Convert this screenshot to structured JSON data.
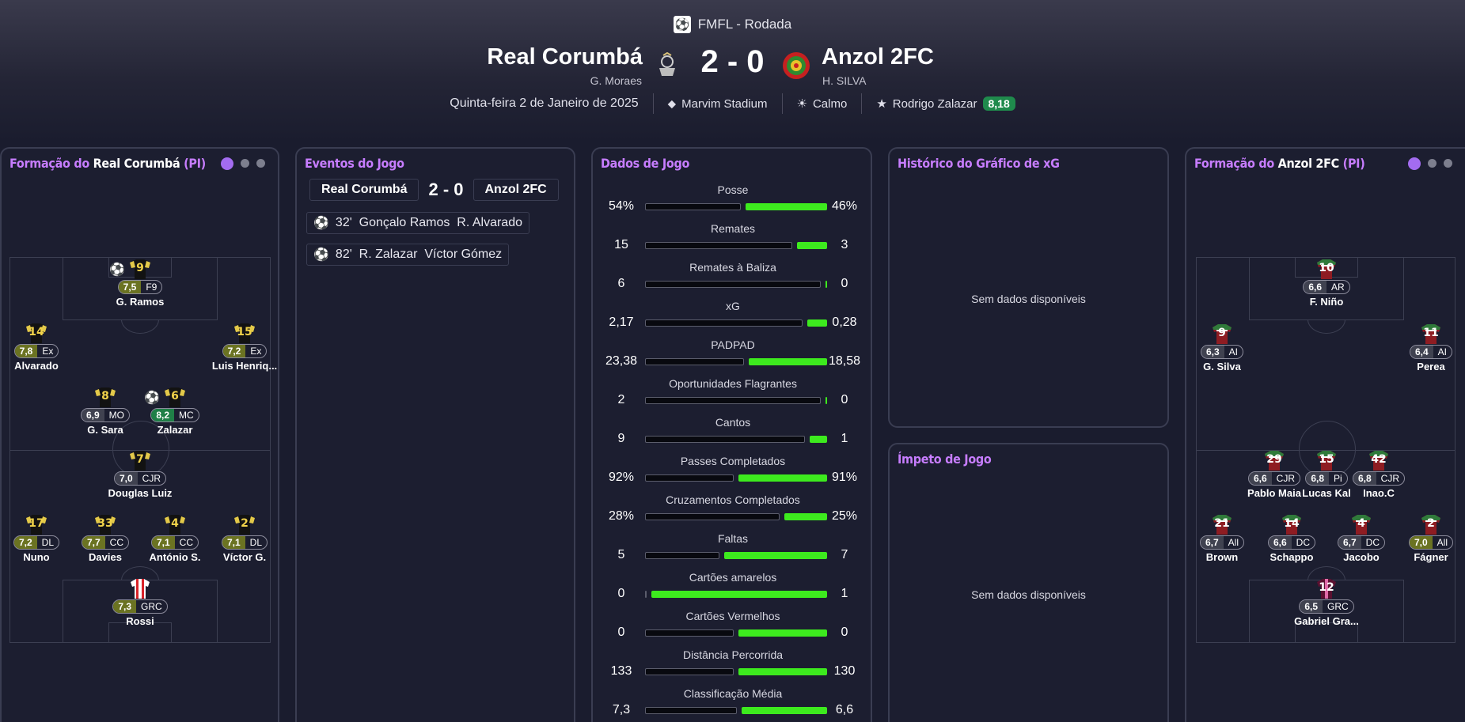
{
  "competition": {
    "icon": "competition-logo",
    "name": "FMFL - Rodada"
  },
  "match": {
    "home": {
      "name": "Real Corumbá",
      "coach": "G. Moraes"
    },
    "away": {
      "name": "Anzol 2FC",
      "coach": "H. SILVA"
    },
    "score": "2 - 0",
    "date": "Quinta-feira 2 de Janeiro de 2025",
    "stadium": "Marvim Stadium",
    "weather": "Calmo",
    "potm": {
      "name": "Rodrigo Zalazar",
      "rating": "8,18"
    }
  },
  "home_lineup": {
    "title_prefix": "Formação do ",
    "team": "Real Corumbá",
    "suffix": " (PI)",
    "players": [
      {
        "num": "9",
        "rating": "7,5",
        "tone": "olive",
        "pos": "F9",
        "name": "G. Ramos",
        "goal": true
      },
      {
        "num": "14",
        "rating": "7,8",
        "tone": "olive",
        "pos": "Ex",
        "name": "Alvarado"
      },
      {
        "num": "15",
        "rating": "7,2",
        "tone": "olive",
        "pos": "Ex",
        "name": "Luis Henriq..."
      },
      {
        "num": "8",
        "rating": "6,9",
        "tone": "gray",
        "pos": "MO",
        "name": "G. Sara"
      },
      {
        "num": "6",
        "rating": "8,2",
        "tone": "green",
        "pos": "MC",
        "name": "Zalazar",
        "goal": true
      },
      {
        "num": "7",
        "rating": "7,0",
        "tone": "gray",
        "pos": "CJR",
        "name": "Douglas Luiz"
      },
      {
        "num": "17",
        "rating": "7,2",
        "tone": "olive",
        "pos": "DL",
        "name": "Nuno"
      },
      {
        "num": "33",
        "rating": "7,7",
        "tone": "olive",
        "pos": "CC",
        "name": "Davies"
      },
      {
        "num": "4",
        "rating": "7,1",
        "tone": "olive",
        "pos": "CC",
        "name": "António S."
      },
      {
        "num": "2",
        "rating": "7,1",
        "tone": "olive",
        "pos": "DL",
        "name": "Víctor G."
      },
      {
        "num": "",
        "rating": "7,3",
        "tone": "olive",
        "pos": "GRC",
        "name": "Rossi",
        "gk": true
      }
    ]
  },
  "away_lineup": {
    "title_prefix": "Formação do ",
    "team": "Anzol 2FC",
    "suffix": " (PI)",
    "players": [
      {
        "num": "10",
        "rating": "6,6",
        "tone": "gray",
        "pos": "AR",
        "name": "F. Niño"
      },
      {
        "num": "9",
        "rating": "6,3",
        "tone": "gray",
        "pos": "AI",
        "name": "G. Silva"
      },
      {
        "num": "11",
        "rating": "6,4",
        "tone": "gray",
        "pos": "AI",
        "name": "Perea"
      },
      {
        "num": "29",
        "rating": "6,6",
        "tone": "gray",
        "pos": "CJR",
        "name": "Pablo Maia"
      },
      {
        "num": "15",
        "rating": "6,8",
        "tone": "gray",
        "pos": "Pi",
        "name": "Lucas Kal"
      },
      {
        "num": "42",
        "rating": "6,8",
        "tone": "gray",
        "pos": "CJR",
        "name": "Inao.C"
      },
      {
        "num": "21",
        "rating": "6,7",
        "tone": "gray",
        "pos": "All",
        "name": "Brown"
      },
      {
        "num": "14",
        "rating": "6,6",
        "tone": "gray",
        "pos": "DC",
        "name": "Schappo"
      },
      {
        "num": "4",
        "rating": "6,7",
        "tone": "gray",
        "pos": "DC",
        "name": "Jacobo"
      },
      {
        "num": "2",
        "rating": "7,0",
        "tone": "olive",
        "pos": "All",
        "name": "Fágner"
      },
      {
        "num": "12",
        "rating": "6,5",
        "tone": "gray",
        "pos": "GRC",
        "name": "Gabriel Gra...",
        "gk": true
      }
    ]
  },
  "events": {
    "title": "Eventos do Jogo",
    "home": "Real Corumbá",
    "score": "2 - 0",
    "away": "Anzol 2FC",
    "items": [
      {
        "icon": "ball-icon",
        "text": "32'  Gonçalo Ramos  R. Alvarado"
      },
      {
        "icon": "ball-icon",
        "text": "82'  R. Zalazar  Víctor Gómez"
      }
    ]
  },
  "stats": {
    "title": "Dados de Jogo",
    "rows": [
      {
        "label": "Posse",
        "home": "54%",
        "away": "46%",
        "home_share": 0.54
      },
      {
        "label": "Remates",
        "home": "15",
        "away": "3",
        "home_share": 0.83
      },
      {
        "label": "Remates à Baliza",
        "home": "6",
        "away": "0",
        "home_share": 0.99
      },
      {
        "label": "xG",
        "home": "2,17",
        "away": "0,28",
        "home_share": 0.89
      },
      {
        "label": "PADPAD",
        "home": "23,38",
        "away": "18,58",
        "home_share": 0.56
      },
      {
        "label": "Oportunidades Flagrantes",
        "home": "2",
        "away": "0",
        "home_share": 0.99
      },
      {
        "label": "Cantos",
        "home": "9",
        "away": "1",
        "home_share": 0.9
      },
      {
        "label": "Passes Completados",
        "home": "92%",
        "away": "91%",
        "home_share": 0.5
      },
      {
        "label": "Cruzamentos Completados",
        "home": "28%",
        "away": "25%",
        "home_share": 0.76
      },
      {
        "label": "Faltas",
        "home": "5",
        "away": "7",
        "home_share": 0.42
      },
      {
        "label": "Cartões amarelos",
        "home": "0",
        "away": "1",
        "home_share": 0.01
      },
      {
        "label": "Cartões Vermelhos",
        "home": "0",
        "away": "0",
        "home_share": 0.5
      },
      {
        "label": "Distância Percorrida",
        "home": "133",
        "away": "130",
        "home_share": 0.5
      },
      {
        "label": "Classificação Média",
        "home": "7,3",
        "away": "6,6",
        "home_share": 0.52
      }
    ]
  },
  "xg_history": {
    "title": "Histórico do Gráfico de xG",
    "empty": "Sem dados disponíveis"
  },
  "momentum": {
    "title": "Ímpeto de Jogo",
    "empty": "Sem dados disponíveis"
  },
  "colors": {
    "accent": "#c77dff",
    "bar_green": "#3dea1e",
    "rating_green": "#1f8a4c",
    "rating_olive": "#6b7322"
  }
}
